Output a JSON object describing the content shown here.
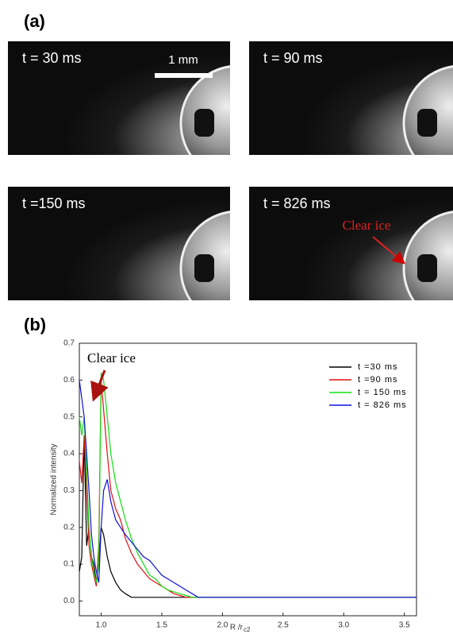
{
  "figure": {
    "panel_a_label": "(a)",
    "panel_b_label": "(b)",
    "images": [
      {
        "label": "t = 30 ms"
      },
      {
        "label": "t = 90 ms"
      },
      {
        "label": "t =150 ms"
      },
      {
        "label": "t = 826 ms"
      }
    ],
    "scale_bar": "1 mm",
    "image_annotation": "Clear ice"
  },
  "chart_data": {
    "type": "line",
    "ylabel": "Normalized intensity",
    "xlabel": "R /r",
    "xlabel_subscript": "c2",
    "annotation": "Clear ice",
    "x": [
      0.82,
      0.84,
      0.86,
      0.88,
      0.9,
      0.92,
      0.94,
      0.96,
      0.98,
      1.0,
      1.02,
      1.05,
      1.08,
      1.12,
      1.16,
      1.2,
      1.25,
      1.3,
      1.35,
      1.4,
      1.45,
      1.5,
      1.55,
      1.6,
      1.65,
      1.7,
      1.75,
      1.8,
      2.0,
      2.5,
      3.0,
      3.6
    ],
    "series": [
      {
        "name": "t =30 ms",
        "color": "#000000",
        "values": [
          0.08,
          0.12,
          0.45,
          0.15,
          0.2,
          0.12,
          0.1,
          0.05,
          0.1,
          0.2,
          0.18,
          0.12,
          0.08,
          0.05,
          0.03,
          0.02,
          0.01,
          0.01,
          0.01,
          0.01,
          0.01,
          0.01,
          0.01,
          0.01,
          0.01,
          0.01,
          0.01,
          0.01,
          0.01,
          0.01,
          0.01,
          0.01
        ]
      },
      {
        "name": "t =90 ms",
        "color": "#e01010",
        "values": [
          0.38,
          0.32,
          0.45,
          0.3,
          0.15,
          0.1,
          0.07,
          0.04,
          0.15,
          0.6,
          0.52,
          0.4,
          0.3,
          0.25,
          0.22,
          0.17,
          0.13,
          0.1,
          0.08,
          0.06,
          0.05,
          0.04,
          0.03,
          0.02,
          0.015,
          0.01,
          0.01,
          0.01,
          0.01,
          0.01,
          0.01,
          0.01
        ]
      },
      {
        "name": "t = 150 ms",
        "color": "#10e010",
        "values": [
          0.5,
          0.45,
          0.5,
          0.35,
          0.2,
          0.12,
          0.08,
          0.05,
          0.1,
          0.62,
          0.6,
          0.5,
          0.4,
          0.32,
          0.27,
          0.22,
          0.17,
          0.13,
          0.1,
          0.07,
          0.06,
          0.04,
          0.03,
          0.025,
          0.02,
          0.015,
          0.01,
          0.01,
          0.01,
          0.01,
          0.01,
          0.01
        ]
      },
      {
        "name": "t = 826 ms",
        "color": "#1010e0",
        "values": [
          0.6,
          0.55,
          0.5,
          0.4,
          0.3,
          0.18,
          0.12,
          0.08,
          0.05,
          0.2,
          0.3,
          0.33,
          0.27,
          0.22,
          0.2,
          0.18,
          0.16,
          0.14,
          0.12,
          0.11,
          0.09,
          0.07,
          0.06,
          0.05,
          0.04,
          0.03,
          0.02,
          0.01,
          0.01,
          0.01,
          0.01,
          0.01
        ]
      }
    ],
    "xlim": [
      0.82,
      3.6
    ],
    "ylim": [
      -0.04,
      0.7
    ],
    "xticks": [
      {
        "value": 1,
        "label": "1.0"
      },
      {
        "value": 1.5,
        "label": "1.5"
      },
      {
        "value": 2,
        "label": "2.0"
      },
      {
        "value": 2.5,
        "label": "2.5"
      },
      {
        "value": 3,
        "label": "3.0"
      },
      {
        "value": 3.5,
        "label": "3.5"
      }
    ],
    "yticks": [
      {
        "value": 0,
        "label": "0.0"
      },
      {
        "value": 0.1,
        "label": "0.1"
      },
      {
        "value": 0.2,
        "label": "0.2"
      },
      {
        "value": 0.3,
        "label": "0.3"
      },
      {
        "value": 0.4,
        "label": "0.4"
      },
      {
        "value": 0.5,
        "label": "0.5"
      },
      {
        "value": 0.6,
        "label": "0.6"
      },
      {
        "value": 0.7,
        "label": "0.7"
      }
    ],
    "legend": "upper right"
  }
}
